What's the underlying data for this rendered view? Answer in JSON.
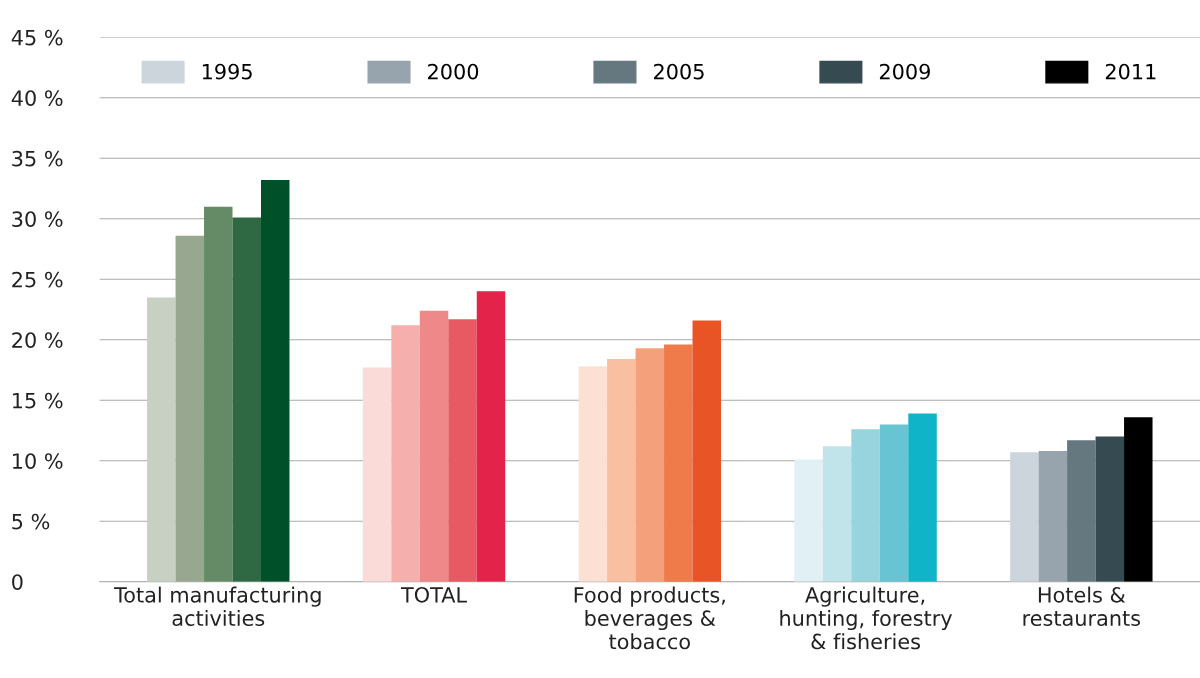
{
  "chart_data": {
    "type": "bar",
    "categories": [
      "Total manufacturing\nactivities",
      "TOTAL",
      "Food products,\nbeverages &\ntobacco",
      "Agriculture,\nhunting, forestry\n& fisheries",
      "Hotels &\nrestaurants"
    ],
    "series": [
      {
        "name": "1995",
        "color": "#cdd5dc",
        "colors": [
          "#c8d0c4",
          "#fadbd8",
          "#fce0d4",
          "#e0f0f4",
          "#cdd5dc"
        ],
        "values": [
          23.5,
          17.7,
          17.8,
          10.1,
          10.7
        ]
      },
      {
        "name": "2000",
        "color": "#97a4ad",
        "colors": [
          "#98a890",
          "#f5b0ad",
          "#f8c0a0",
          "#c0e4ea",
          "#97a4ad"
        ],
        "values": [
          28.6,
          21.2,
          18.4,
          11.2,
          10.8
        ]
      },
      {
        "name": "2005",
        "color": "#657880",
        "colors": [
          "#658b66",
          "#ef8888",
          "#f4a07a",
          "#98d4de",
          "#657880"
        ],
        "values": [
          31.0,
          22.4,
          19.3,
          12.6,
          11.7
        ]
      },
      {
        "name": "2009",
        "color": "#364a52",
        "colors": [
          "#2f6943",
          "#e85a63",
          "#ef7a4a",
          "#68c4d2",
          "#364a52"
        ],
        "values": [
          30.1,
          21.7,
          19.6,
          13.0,
          12.0
        ]
      },
      {
        "name": "2011",
        "color": "#000000",
        "colors": [
          "#00512a",
          "#e3234a",
          "#e85426",
          "#10b4c8",
          "#000000"
        ],
        "values": [
          33.2,
          24.0,
          21.6,
          13.9,
          13.6
        ]
      }
    ],
    "ylim": [
      0,
      45
    ],
    "yticks": [
      0,
      {
        "value": 5,
        "label": "5 %"
      },
      {
        "value": 10,
        "label": "10 %"
      },
      {
        "value": 15,
        "label": "15 %"
      },
      {
        "value": 20,
        "label": "20 %"
      },
      {
        "value": 25,
        "label": "25 %"
      },
      {
        "value": 30,
        "label": "30 %"
      },
      {
        "value": 35,
        "label": "35 %"
      },
      {
        "value": 40,
        "label": "40 %"
      },
      {
        "value": 45,
        "label": "45 %"
      }
    ],
    "grid": "y",
    "legend": "top"
  }
}
